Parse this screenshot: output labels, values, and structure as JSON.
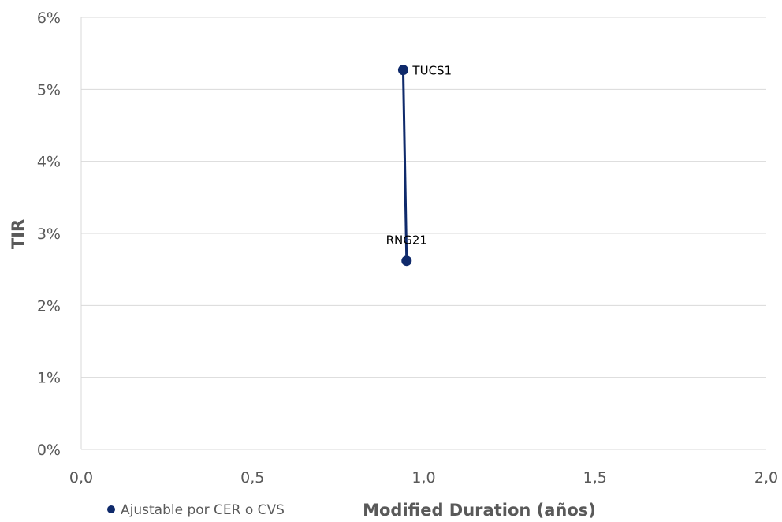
{
  "chart_data": {
    "type": "scatter",
    "xlabel": "Modified Duration (años)",
    "ylabel": "TIR",
    "xlim": [
      0,
      2
    ],
    "ylim": [
      0,
      0.06
    ],
    "x_ticks": [
      "0,0",
      "0,5",
      "1,0",
      "1,5",
      "2,0"
    ],
    "x_tick_values": [
      0,
      0.5,
      1.0,
      1.5,
      2.0
    ],
    "y_ticks": [
      "0%",
      "1%",
      "2%",
      "3%",
      "4%",
      "5%",
      "6%"
    ],
    "y_tick_values": [
      0,
      0.01,
      0.02,
      0.03,
      0.04,
      0.05,
      0.06
    ],
    "grid": "horizontal",
    "legend_position": "bottom-left",
    "series": [
      {
        "name": "Ajustable por CER o CVS",
        "color": "#0f2a6b",
        "connected": true,
        "points": [
          {
            "label": "TUCS1",
            "x": 0.94,
            "y": 0.0527
          },
          {
            "label": "RNG21",
            "x": 0.95,
            "y": 0.0262
          }
        ]
      }
    ]
  }
}
